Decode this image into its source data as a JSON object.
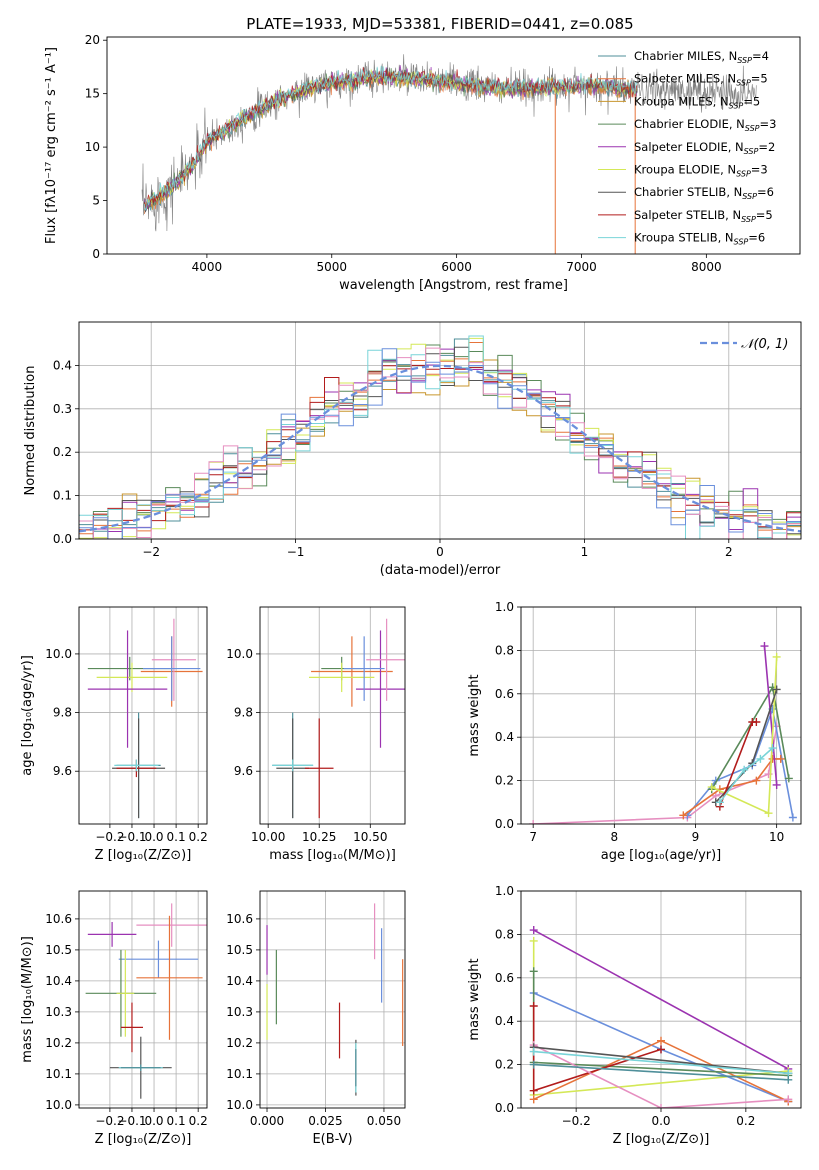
{
  "figure_title": "PLATE=1933, MJD=53381, FIBERID=0441, z=0.085",
  "colors": {
    "Chabrier MILES": "#4f8f9a",
    "Salpeter MILES": "#e6733a",
    "Kroupa MILES": "#c8962e",
    "Chabrier ELODIE": "#5a8a5a",
    "Salpeter ELODIE": "#9b33b0",
    "Kroupa ELODIE": "#d4e857",
    "Chabrier STELIB": "#555555",
    "Salpeter STELIB": "#b21c1c",
    "Kroupa STELIB": "#79d4d8",
    "data": "#808080",
    "blue": "#6a8fdc",
    "pink": "#e68fc0",
    "orange": "#e6733a"
  },
  "chart_data": [
    {
      "type": "line",
      "title": "PLATE=1933, MJD=53381, FIBERID=0441, z=0.085",
      "xlabel": "wavelength [Angstrom, rest frame]",
      "ylabel": "Flux [fλ10⁻¹⁷ erg cm⁻² s⁻¹ A⁻¹]",
      "xlim": [
        3200,
        8750
      ],
      "ylim": [
        0,
        20.3
      ],
      "xticks": [
        "4000",
        "5000",
        "6000",
        "7000",
        "8000"
      ],
      "yticks": [
        "0",
        "5",
        "10",
        "15",
        "20"
      ],
      "legend_position": "upper-right",
      "legend": [
        {
          "label": "Chabrier MILES, N",
          "sub": "SSP",
          "suffix": "=4",
          "color": "#4f8f9a"
        },
        {
          "label": "Salpeter MILES, N",
          "sub": "SSP",
          "suffix": "=5",
          "color": "#e6733a"
        },
        {
          "label": "Kroupa MILES, N",
          "sub": "SSP",
          "suffix": "=5",
          "color": "#c8962e"
        },
        {
          "label": "Chabrier ELODIE, N",
          "sub": "SSP",
          "suffix": "=3",
          "color": "#5a8a5a"
        },
        {
          "label": "Salpeter ELODIE, N",
          "sub": "SSP",
          "suffix": "=2",
          "color": "#9b33b0"
        },
        {
          "label": "Kroupa ELODIE, N",
          "sub": "SSP",
          "suffix": "=3",
          "color": "#d4e857"
        },
        {
          "label": "Chabrier STELIB, N",
          "sub": "SSP",
          "suffix": "=6",
          "color": "#555555"
        },
        {
          "label": "Salpeter STELIB, N",
          "sub": "SSP",
          "suffix": "=5",
          "color": "#b21c1c"
        },
        {
          "label": "Kroupa STELIB, N",
          "sub": "SSP",
          "suffix": "=6",
          "color": "#79d4d8"
        }
      ],
      "continuum_anchor_wavelength": [
        3500,
        3700,
        3900,
        4000,
        4200,
        4500,
        4800,
        5000,
        5300,
        5600,
        6000,
        6300,
        6600,
        7000,
        7300,
        7500,
        8000,
        8400
      ],
      "continuum_anchor_flux": [
        4.5,
        6.0,
        8.5,
        10.5,
        12.0,
        14.0,
        15.5,
        16.0,
        16.5,
        16.5,
        16.0,
        15.5,
        15.5,
        15.8,
        15.5,
        15.3,
        15.2,
        15.0
      ]
    },
    {
      "type": "histogram",
      "xlabel": "(data-model)/error",
      "ylabel": "Normed distribution",
      "xlim": [
        -2.5,
        2.5
      ],
      "ylim": [
        0,
        0.5
      ],
      "xticks": [
        "−2",
        "−1",
        "0",
        "1",
        "2"
      ],
      "yticks": [
        "0.0",
        "0.1",
        "0.2",
        "0.3",
        "0.4"
      ],
      "legend": [
        {
          "label": "𝒩(0, 1)",
          "style": "dashed",
          "color": "#6a8fdc"
        }
      ],
      "legend_position": "upper-right",
      "bin_width": 0.1,
      "bin_start": -2.5,
      "reference_curve": "normal(0,1)"
    },
    {
      "type": "errorbar",
      "xlabel": "Z [log₁₀(Z/Z⊙)]",
      "ylabel": "age  [log₁₀(age/yr)]",
      "xlim": [
        -0.34,
        0.24
      ],
      "ylim": [
        9.42,
        10.16
      ],
      "xticks": [
        "−0.2",
        "−0.1",
        "0.0",
        "0.1",
        "0.2"
      ],
      "yticks": [
        "9.6",
        "9.8",
        "10.0"
      ],
      "points": [
        {
          "x": -0.11,
          "xerr": 0.19,
          "y": 9.95,
          "yerr": 0.04,
          "color": "#5a8a5a"
        },
        {
          "x": 0.08,
          "xerr": 0.14,
          "y": 9.94,
          "yerr": 0.12,
          "color": "#e6733a"
        },
        {
          "x": -0.1,
          "xerr": 0.16,
          "y": 9.92,
          "yerr": 0.05,
          "color": "#d4e857"
        },
        {
          "x": -0.12,
          "xerr": 0.18,
          "y": 9.88,
          "yerr": 0.2,
          "color": "#9b33b0"
        },
        {
          "x": 0.09,
          "xerr": 0.1,
          "y": 9.98,
          "yerr": 0.14,
          "color": "#e68fc0"
        },
        {
          "x": 0.08,
          "xerr": 0.13,
          "y": 9.95,
          "yerr": 0.11,
          "color": "#6a8fdc"
        },
        {
          "x": -0.07,
          "xerr": 0.1,
          "y": 9.62,
          "yerr": 0.18,
          "color": "#4f8f9a"
        },
        {
          "x": -0.07,
          "xerr": 0.12,
          "y": 9.61,
          "yerr": 0.17,
          "color": "#555555"
        },
        {
          "x": -0.08,
          "xerr": 0.09,
          "y": 9.61,
          "yerr": 0.03,
          "color": "#b21c1c"
        },
        {
          "x": -0.08,
          "xerr": 0.1,
          "y": 9.62,
          "yerr": 0.02,
          "color": "#79d4d8"
        }
      ]
    },
    {
      "type": "errorbar",
      "xlabel": "mass [log₁₀(M/M⊙)]",
      "ylabel": "",
      "xlim": [
        9.96,
        10.67
      ],
      "ylim": [
        9.42,
        10.16
      ],
      "xticks": [
        "10.00",
        "10.25",
        "10.50"
      ],
      "yticks": [
        "9.6",
        "9.8",
        "10.0"
      ],
      "points": [
        {
          "x": 10.36,
          "xerr": 0.1,
          "y": 9.95,
          "yerr": 0.04,
          "color": "#5a8a5a"
        },
        {
          "x": 10.41,
          "xerr": 0.2,
          "y": 9.94,
          "yerr": 0.12,
          "color": "#e6733a"
        },
        {
          "x": 10.36,
          "xerr": 0.16,
          "y": 9.92,
          "yerr": 0.05,
          "color": "#d4e857"
        },
        {
          "x": 10.55,
          "xerr": 0.12,
          "y": 9.88,
          "yerr": 0.2,
          "color": "#9b33b0"
        },
        {
          "x": 10.58,
          "xerr": 0.1,
          "y": 9.98,
          "yerr": 0.14,
          "color": "#e68fc0"
        },
        {
          "x": 10.47,
          "xerr": 0.1,
          "y": 9.95,
          "yerr": 0.11,
          "color": "#6a8fdc"
        },
        {
          "x": 10.12,
          "xerr": 0.1,
          "y": 9.62,
          "yerr": 0.18,
          "color": "#4f8f9a"
        },
        {
          "x": 10.12,
          "xerr": 0.08,
          "y": 9.61,
          "yerr": 0.17,
          "color": "#555555"
        },
        {
          "x": 10.25,
          "xerr": 0.07,
          "y": 9.61,
          "yerr": 0.17,
          "color": "#b21c1c"
        },
        {
          "x": 10.12,
          "xerr": 0.1,
          "y": 9.62,
          "yerr": 0.02,
          "color": "#79d4d8"
        }
      ]
    },
    {
      "type": "line",
      "xlabel": "age  [log₁₀(age/yr)]",
      "ylabel": "mass weight",
      "xlim": [
        6.85,
        10.3
      ],
      "ylim": [
        0,
        1.0
      ],
      "xticks": [
        "7",
        "8",
        "9",
        "10"
      ],
      "yticks": [
        "0.0",
        "0.2",
        "0.4",
        "0.6",
        "0.8",
        "1.0"
      ],
      "series": [
        {
          "color": "#e68fc0",
          "x": [
            7.0,
            8.9,
            9.25,
            9.9,
            10.0
          ],
          "y": [
            0.0,
            0.03,
            0.13,
            0.23,
            0.45
          ]
        },
        {
          "color": "#6a8fdc",
          "x": [
            8.9,
            9.25,
            9.7,
            9.95,
            10.2
          ],
          "y": [
            0.04,
            0.2,
            0.27,
            0.53,
            0.03
          ]
        },
        {
          "color": "#e6733a",
          "x": [
            8.85,
            9.3,
            9.75,
            9.95,
            10.05
          ],
          "y": [
            0.04,
            0.16,
            0.2,
            0.3,
            0.3
          ]
        },
        {
          "color": "#5a8a5a",
          "x": [
            9.2,
            9.95,
            10.15
          ],
          "y": [
            0.16,
            0.63,
            0.21
          ]
        },
        {
          "color": "#9b33b0",
          "x": [
            9.85,
            10.0
          ],
          "y": [
            0.82,
            0.18
          ]
        },
        {
          "color": "#d4e857",
          "x": [
            9.2,
            9.9,
            10.0
          ],
          "y": [
            0.17,
            0.05,
            0.77
          ]
        },
        {
          "color": "#555555",
          "x": [
            9.25,
            9.7,
            10.0
          ],
          "y": [
            0.1,
            0.28,
            0.62
          ]
        },
        {
          "color": "#b21c1c",
          "x": [
            9.3,
            9.7,
            9.75
          ],
          "y": [
            0.08,
            0.47,
            0.47
          ]
        },
        {
          "color": "#79d4d8",
          "x": [
            9.3,
            9.6,
            9.8,
            9.95
          ],
          "y": [
            0.1,
            0.25,
            0.3,
            0.35
          ]
        }
      ]
    },
    {
      "type": "errorbar",
      "xlabel": "Z [log₁₀(Z/Z⊙)]",
      "ylabel": "mass [log₁₀(M/M⊙)]",
      "xlim": [
        -0.34,
        0.24
      ],
      "ylim": [
        9.99,
        10.69
      ],
      "xticks": [
        "−0.2",
        "−0.1",
        "0.0",
        "0.1",
        "0.2"
      ],
      "yticks": [
        "10.0",
        "10.1",
        "10.2",
        "10.3",
        "10.4",
        "10.5",
        "10.6"
      ],
      "points": [
        {
          "x": 0.08,
          "xerr": 0.16,
          "y": 10.58,
          "yerr": 0.07,
          "color": "#e68fc0"
        },
        {
          "x": -0.19,
          "xerr": 0.11,
          "y": 10.55,
          "yerr": 0.04,
          "color": "#9b33b0"
        },
        {
          "x": 0.02,
          "xerr": 0.18,
          "y": 10.47,
          "yerr": 0.06,
          "color": "#6a8fdc"
        },
        {
          "x": 0.07,
          "xerr": 0.15,
          "y": 10.41,
          "yerr": 0.2,
          "color": "#e6733a"
        },
        {
          "x": -0.15,
          "xerr": 0.16,
          "y": 10.36,
          "yerr": 0.14,
          "color": "#5a8a5a"
        },
        {
          "x": -0.13,
          "xerr": 0.04,
          "y": 10.36,
          "yerr": 0.14,
          "color": "#d4e857"
        },
        {
          "x": -0.1,
          "xerr": 0.05,
          "y": 10.25,
          "yerr": 0.08,
          "color": "#b21c1c"
        },
        {
          "x": -0.06,
          "xerr": 0.14,
          "y": 10.12,
          "yerr": 0.1,
          "color": "#555555"
        },
        {
          "x": -0.06,
          "xerr": 0.1,
          "y": 10.12,
          "yerr": 0.01,
          "color": "#79d4d8"
        },
        {
          "x": -0.06,
          "xerr": 0.09,
          "y": 10.12,
          "yerr": 0.01,
          "color": "#4f8f9a"
        }
      ]
    },
    {
      "type": "errorbar",
      "xlabel": "E(B-V)",
      "ylabel": "",
      "xlim": [
        -0.003,
        0.059
      ],
      "ylim": [
        9.99,
        10.69
      ],
      "xticks": [
        "0.000",
        "0.025",
        "0.050"
      ],
      "yticks": [
        "10.0",
        "10.1",
        "10.2",
        "10.3",
        "10.4",
        "10.5",
        "10.6"
      ],
      "points": [
        {
          "x": 0.046,
          "y": 10.56,
          "yerr": 0.09,
          "color": "#e68fc0"
        },
        {
          "x": 0.0,
          "y": 10.5,
          "yerr": 0.08,
          "color": "#9b33b0"
        },
        {
          "x": 0.049,
          "y": 10.45,
          "yerr": 0.12,
          "color": "#6a8fdc"
        },
        {
          "x": 0.0,
          "y": 10.3,
          "yerr": 0.09,
          "color": "#d4e857"
        },
        {
          "x": 0.004,
          "y": 10.38,
          "yerr": 0.12,
          "color": "#5a8a5a"
        },
        {
          "x": 0.058,
          "y": 10.33,
          "yerr": 0.14,
          "color": "#e6733a"
        },
        {
          "x": 0.031,
          "y": 10.24,
          "yerr": 0.09,
          "color": "#b21c1c"
        },
        {
          "x": 0.038,
          "y": 10.12,
          "yerr": 0.09,
          "color": "#555555"
        },
        {
          "x": 0.038,
          "y": 10.12,
          "yerr": 0.08,
          "color": "#79d4d8"
        },
        {
          "x": 0.038,
          "y": 10.12,
          "yerr": 0.06,
          "color": "#4f8f9a"
        }
      ]
    },
    {
      "type": "line",
      "xlabel": "Z [log₁₀(Z/Z⊙)]",
      "ylabel": "mass weight",
      "xlim": [
        -0.33,
        0.33
      ],
      "ylim": [
        0,
        1.0
      ],
      "xticks": [
        "−0.2",
        "0.0",
        "0.2"
      ],
      "yticks": [
        "0.0",
        "0.2",
        "0.4",
        "0.6",
        "0.8",
        "1.0"
      ],
      "series": [
        {
          "color": "#9b33b0",
          "x": [
            -0.3,
            0.3
          ],
          "y": [
            0.82,
            0.18
          ]
        },
        {
          "color": "#d4e857",
          "x": [
            -0.3,
            -0.3,
            0.3
          ],
          "y": [
            0.77,
            0.06,
            0.17
          ]
        },
        {
          "color": "#6a8fdc",
          "x": [
            -0.3,
            0.0,
            0.3
          ],
          "y": [
            0.53,
            0.27,
            0.03
          ]
        },
        {
          "color": "#e6733a",
          "x": [
            -0.3,
            0.0,
            0.3
          ],
          "y": [
            0.04,
            0.31,
            0.03
          ]
        },
        {
          "color": "#5a8a5a",
          "x": [
            -0.3,
            -0.3,
            0.3
          ],
          "y": [
            0.63,
            0.21,
            0.15
          ]
        },
        {
          "color": "#b21c1c",
          "x": [
            -0.3,
            -0.3,
            0.0
          ],
          "y": [
            0.47,
            0.08,
            0.27
          ]
        },
        {
          "color": "#e68fc0",
          "x": [
            -0.3,
            0.0,
            0.3
          ],
          "y": [
            0.29,
            0.0,
            0.04
          ]
        },
        {
          "color": "#555555",
          "x": [
            -0.3,
            0.3
          ],
          "y": [
            0.28,
            0.16
          ]
        },
        {
          "color": "#79d4d8",
          "x": [
            -0.3,
            0.3
          ],
          "y": [
            0.26,
            0.16
          ]
        },
        {
          "color": "#4f8f9a",
          "x": [
            -0.3,
            0.3
          ],
          "y": [
            0.2,
            0.13
          ]
        }
      ]
    }
  ]
}
